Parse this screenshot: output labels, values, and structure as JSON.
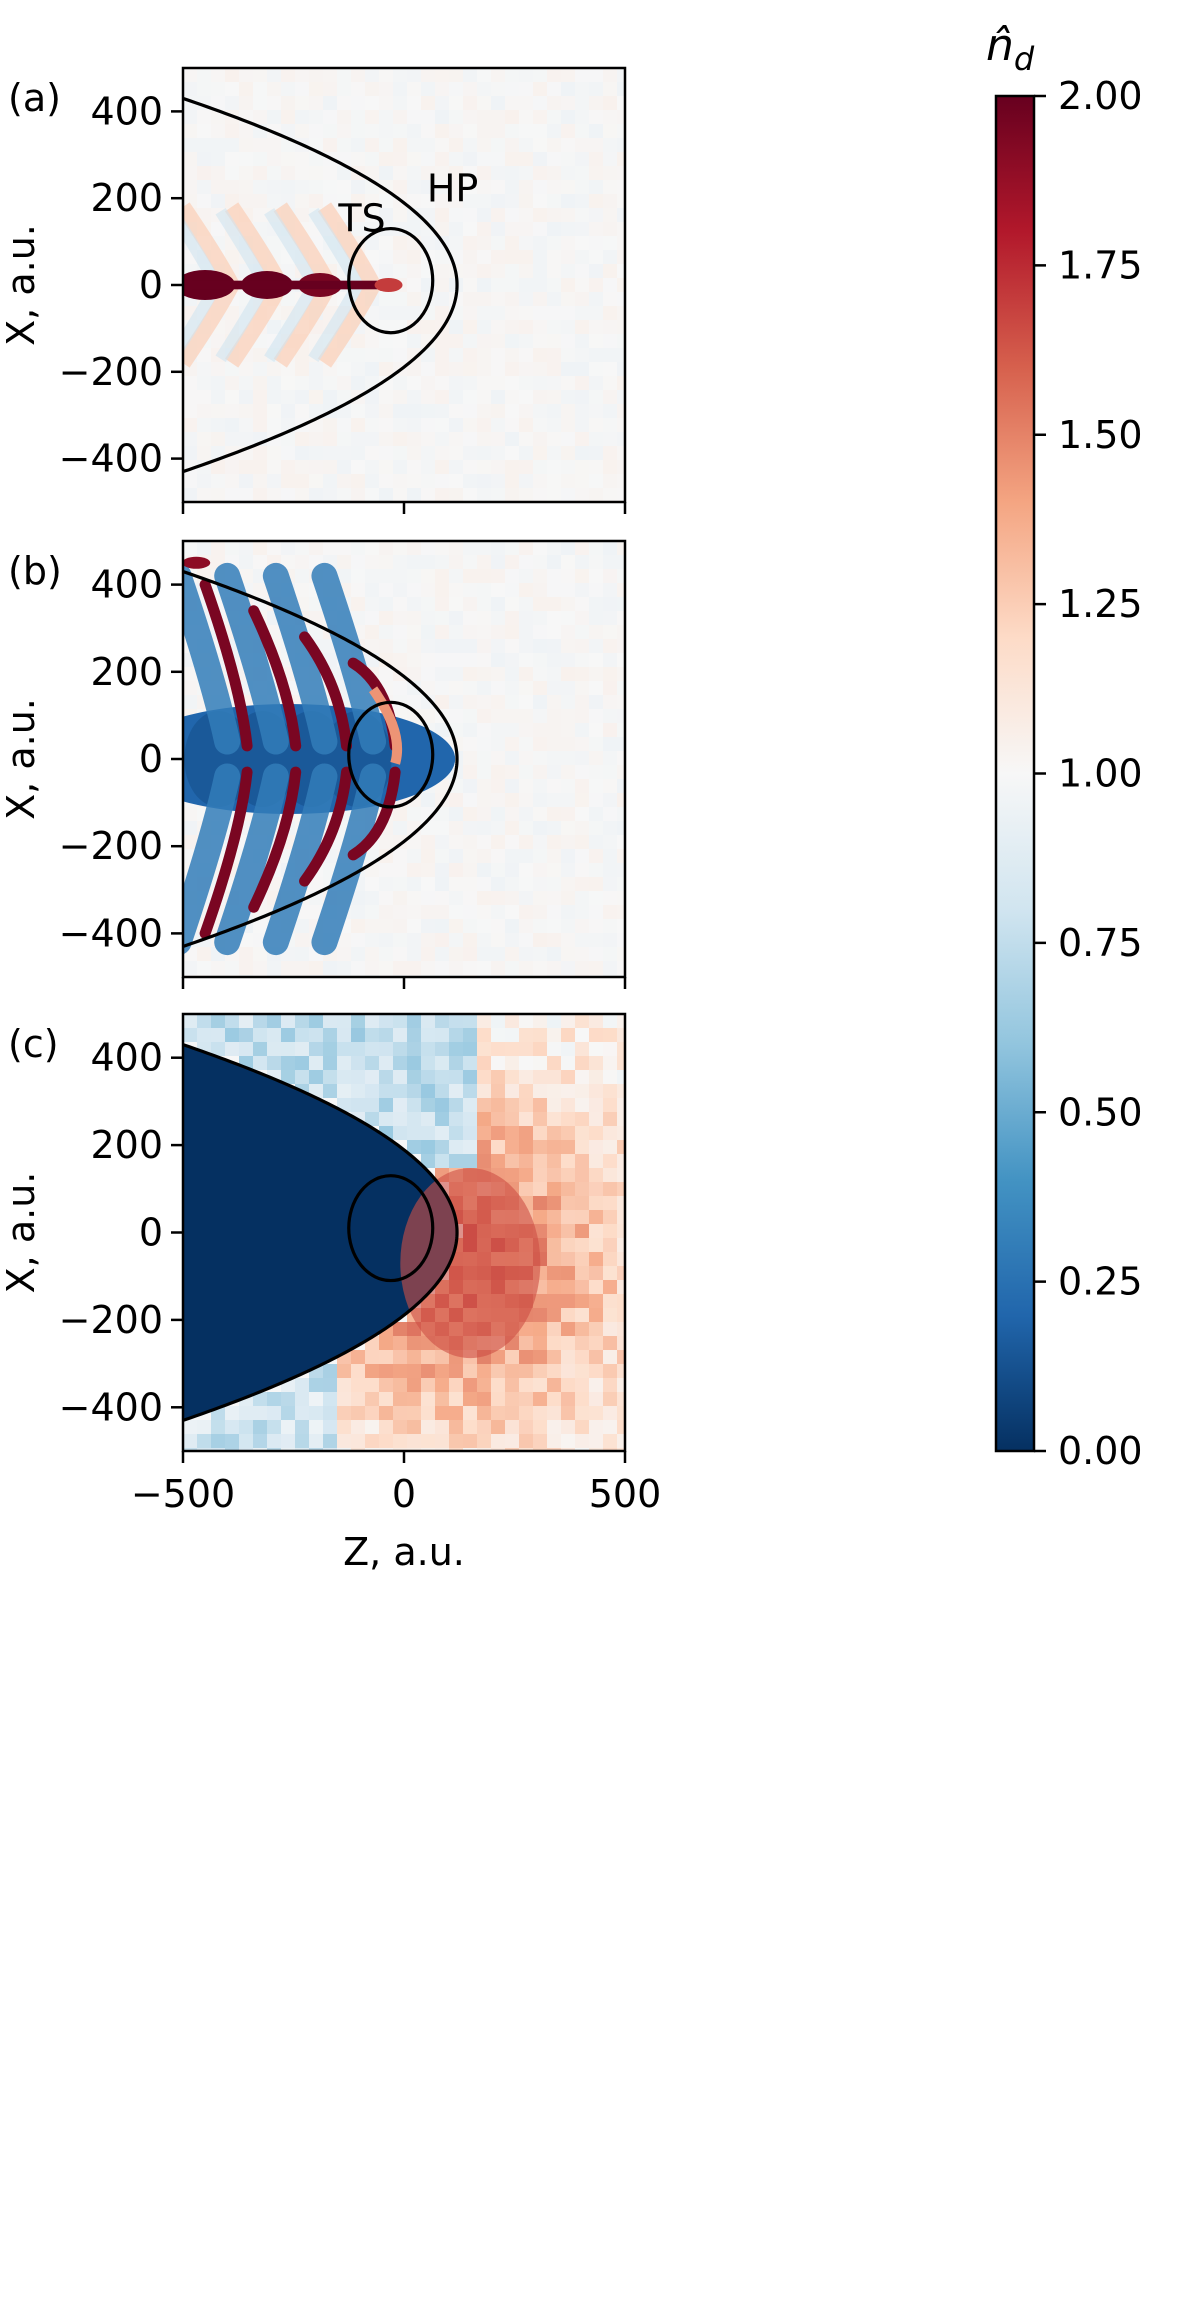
{
  "chart_data": [
    {
      "panel_label": "(a)",
      "type": "heatmap",
      "xlabel": "",
      "ylabel": "X, a.u.",
      "xlim": [
        -500,
        500
      ],
      "ylim": [
        -500,
        500
      ],
      "yticks": [
        400,
        200,
        0,
        -200,
        -400
      ],
      "ytick_labels": [
        "400",
        "200",
        "0",
        "−200",
        "−400"
      ],
      "xticks": [
        -500,
        0,
        500
      ],
      "xtick_labels": [],
      "annotations": [
        {
          "text": "HP",
          "x": 110,
          "y": 225
        },
        {
          "text": "TS",
          "x": -95,
          "y": 155
        }
      ],
      "features": {
        "background": 1.0,
        "jet_along_axis": 2.0,
        "chevron_waves": 1.2
      },
      "curves": {
        "hp": {
          "vertex_z": 120,
          "half_width_at_z_minus_500": 430
        },
        "ts": {
          "center_z": -30,
          "center_x": 10,
          "radius_z": 95,
          "radius_x": 120
        }
      }
    },
    {
      "panel_label": "(b)",
      "type": "heatmap",
      "xlabel": "",
      "ylabel": "X, a.u.",
      "xlim": [
        -500,
        500
      ],
      "ylim": [
        -500,
        500
      ],
      "yticks": [
        400,
        200,
        0,
        -200,
        -400
      ],
      "ytick_labels": [
        "400",
        "200",
        "0",
        "−200",
        "−400"
      ],
      "xticks": [
        -500,
        0,
        500
      ],
      "xtick_labels": [],
      "features": {
        "background": 1.0,
        "core_depletion": 0.2,
        "chevron_ridges": 2.0
      },
      "curves": {
        "hp": {
          "vertex_z": 120,
          "half_width_at_z_minus_500": 430
        },
        "ts": {
          "center_z": -30,
          "center_x": 10,
          "radius_z": 95,
          "radius_x": 120
        }
      }
    },
    {
      "panel_label": "(c)",
      "type": "heatmap",
      "xlabel": "Z, a.u.",
      "ylabel": "X, a.u.",
      "xlim": [
        -500,
        500
      ],
      "ylim": [
        -500,
        500
      ],
      "yticks": [
        400,
        200,
        0,
        -200,
        -400
      ],
      "ytick_labels": [
        "400",
        "200",
        "0",
        "−200",
        "−400"
      ],
      "xticks": [
        -500,
        0,
        500
      ],
      "xtick_labels": [
        "−500",
        "0",
        "500"
      ],
      "features": {
        "inside_hp": 0.0,
        "outside_upstream_peak": 1.6,
        "outside_far": 1.2
      },
      "curves": {
        "hp": {
          "vertex_z": 120,
          "half_width_at_z_minus_500": 430
        },
        "ts": {
          "center_z": -30,
          "center_x": 10,
          "radius_z": 95,
          "radius_x": 120
        }
      }
    }
  ],
  "colorbar": {
    "label": "n̂",
    "label_subscript": "d",
    "range": [
      0,
      2
    ],
    "ticks": [
      2.0,
      1.75,
      1.5,
      1.25,
      1.0,
      0.75,
      0.5,
      0.25,
      0.0
    ],
    "tick_labels": [
      "2.00",
      "1.75",
      "1.50",
      "1.25",
      "1.00",
      "0.75",
      "0.50",
      "0.25",
      "0.00"
    ],
    "colors": [
      "#053061",
      "#2166ac",
      "#4393c3",
      "#92c5de",
      "#d1e5f0",
      "#f7f7f7",
      "#fddbc7",
      "#f4a582",
      "#d6604d",
      "#b2182b",
      "#67001f"
    ]
  }
}
